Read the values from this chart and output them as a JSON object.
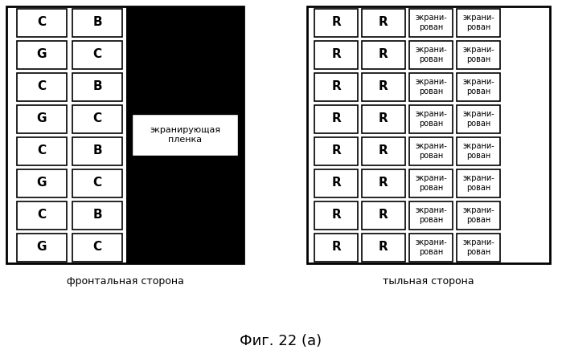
{
  "fig_width": 6.99,
  "fig_height": 4.51,
  "bg_color": "#ffffff",
  "title": "Фиг. 22 (а)",
  "left_label": "фронтальная сторона",
  "right_label": "тыльная сторона",
  "left_col1": [
    "C",
    "G",
    "C",
    "G",
    "C",
    "G",
    "C",
    "G"
  ],
  "left_col2": [
    "B",
    "C",
    "B",
    "C",
    "B",
    "C",
    "B",
    "C"
  ],
  "right_col1": [
    "R",
    "R",
    "R",
    "R",
    "R",
    "R",
    "R",
    "R"
  ],
  "right_col2": [
    "R",
    "R",
    "R",
    "R",
    "R",
    "R",
    "R",
    "R"
  ],
  "screen_text_r": "экрани-\nрован",
  "screening_label": "экранирующая\nпленка"
}
